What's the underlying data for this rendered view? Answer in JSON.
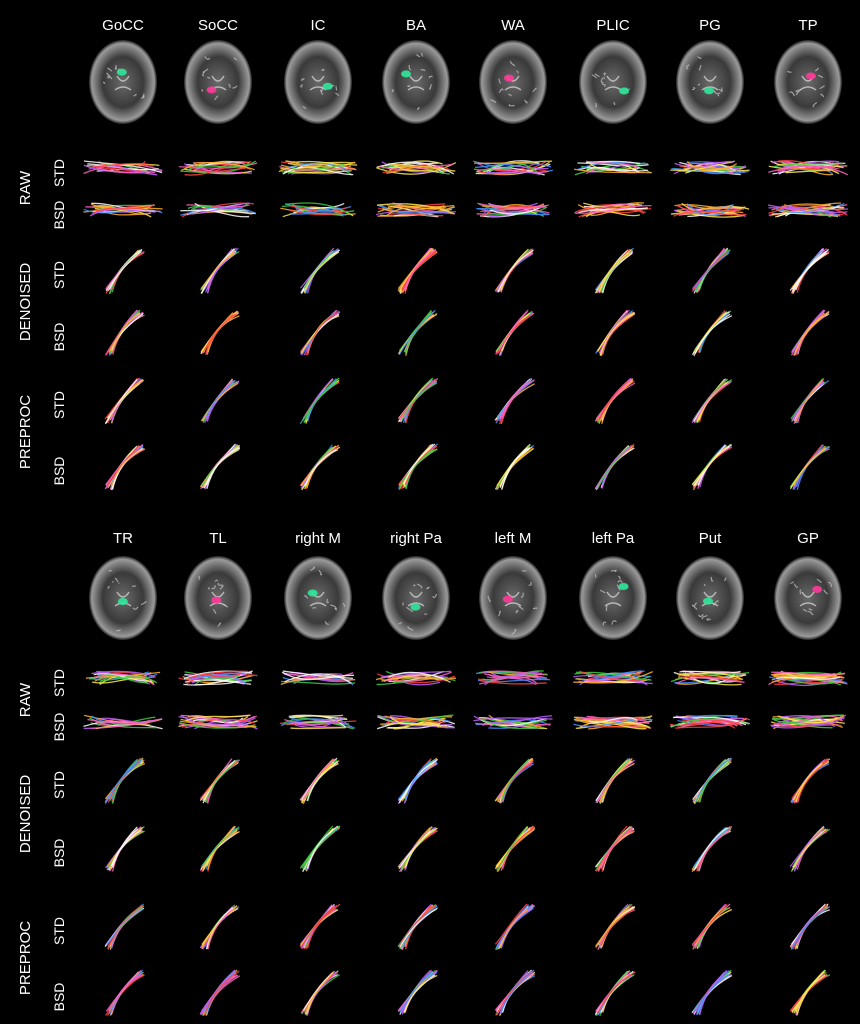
{
  "panels": [
    {
      "columns": [
        "GoCC",
        "SoCC",
        "IC",
        "BA",
        "WA",
        "PLIC",
        "PG",
        "TP"
      ],
      "groups": [
        {
          "name": "RAW",
          "rows": [
            "STD",
            "BSD"
          ]
        },
        {
          "name": "DENOISED",
          "rows": [
            "STD",
            "BSD"
          ]
        },
        {
          "name": "PREPROC",
          "rows": [
            "STD",
            "BSD"
          ]
        }
      ]
    },
    {
      "columns": [
        "TR",
        "TL",
        "right M",
        "right Pa",
        "left M",
        "left Pa",
        "Put",
        "GP"
      ],
      "groups": [
        {
          "name": "RAW",
          "rows": [
            "STD",
            "BSD"
          ]
        },
        {
          "name": "DENOISED",
          "rows": [
            "STD",
            "BSD"
          ]
        },
        {
          "name": "PREPROC",
          "rows": [
            "STD",
            "BSD"
          ]
        }
      ]
    }
  ],
  "colors": {
    "background": "#000000",
    "label": "#ffffff",
    "roi_green": "#2ee89a",
    "roi_magenta": "#ff3a9a",
    "tract_palette": [
      "#ff4040",
      "#ffb030",
      "#ffe850",
      "#40d040",
      "#4090ff",
      "#c060ff",
      "#ff60c0",
      "#ffffff"
    ]
  }
}
